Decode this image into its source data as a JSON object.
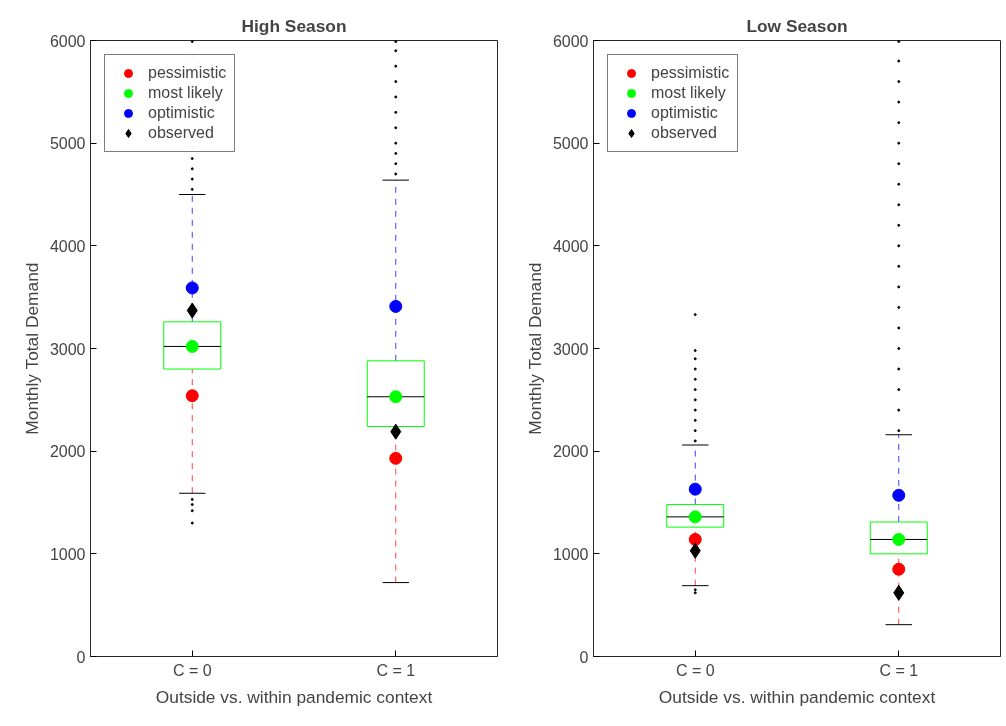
{
  "chart_data": [
    {
      "type": "box",
      "title": "High Season",
      "xlabel": "Outside vs. within pandemic context",
      "ylabel": "Monthly Total Demand",
      "categories": [
        "C = 0",
        "C = 1"
      ],
      "ylim": [
        0,
        6000
      ],
      "yticks": [
        0,
        1000,
        2000,
        3000,
        4000,
        5000,
        6000
      ],
      "grid": false,
      "legend": "top left",
      "series": [
        {
          "color": "#00ff00",
          "boxes": [
            {
              "low": 1590,
              "q1": 2800,
              "median": 3020,
              "q3": 3260,
              "high": 4500,
              "outliers": [
                4550,
                4650,
                4750,
                4850,
                4950,
                5100,
                5250,
                5400,
                5550,
                5700,
                5850,
                5990,
                1530,
                1480,
                1420,
                1300
              ]
            },
            {
              "low": 720,
              "q1": 2240,
              "median": 2530,
              "q3": 2880,
              "high": 4640,
              "outliers": [
                4700,
                4800,
                4900,
                5000,
                5150,
                5300,
                5450,
                5600,
                5750,
                5900,
                5990
              ]
            }
          ]
        },
        {
          "type": "scatter",
          "name": "pessimistic",
          "color": "#ff0000",
          "marker": "circle",
          "x": [
            "C = 0",
            "C = 1"
          ],
          "values": [
            2540,
            1930
          ]
        },
        {
          "type": "scatter",
          "name": "most likely",
          "color": "#00ff00",
          "marker": "circle",
          "x": [
            "C = 0",
            "C = 1"
          ],
          "values": [
            3020,
            2530
          ]
        },
        {
          "type": "scatter",
          "name": "optimistic",
          "color": "#0000ff",
          "marker": "circle",
          "x": [
            "C = 0",
            "C = 1"
          ],
          "values": [
            3590,
            3410
          ]
        },
        {
          "type": "scatter",
          "name": "observed",
          "color": "#000000",
          "marker": "diamond",
          "x": [
            "C = 0",
            "C = 1"
          ],
          "values": [
            3370,
            2190
          ]
        }
      ]
    },
    {
      "type": "box",
      "title": "Low Season",
      "xlabel": "Outside vs. within pandemic context",
      "ylabel": "Monthly Total Demand",
      "categories": [
        "C = 0",
        "C = 1"
      ],
      "ylim": [
        0,
        6000
      ],
      "yticks": [
        0,
        1000,
        2000,
        3000,
        4000,
        5000,
        6000
      ],
      "grid": false,
      "legend": "top left",
      "series": [
        {
          "color": "#00ff00",
          "boxes": [
            {
              "low": 690,
              "q1": 1260,
              "median": 1360,
              "q3": 1480,
              "high": 2060,
              "outliers": [
                2100,
                2200,
                2300,
                2400,
                2500,
                2600,
                2700,
                2800,
                2900,
                2980,
                3330,
                650,
                620
              ]
            },
            {
              "low": 310,
              "q1": 1000,
              "median": 1140,
              "q3": 1310,
              "high": 2160,
              "outliers": [
                2200,
                2400,
                2600,
                2800,
                3000,
                3200,
                3400,
                3600,
                3800,
                4000,
                4200,
                4400,
                4600,
                4800,
                5000,
                5200,
                5400,
                5600,
                5800,
                5990
              ]
            }
          ]
        },
        {
          "type": "scatter",
          "name": "pessimistic",
          "color": "#ff0000",
          "marker": "circle",
          "x": [
            "C = 0",
            "C = 1"
          ],
          "values": [
            1140,
            850
          ]
        },
        {
          "type": "scatter",
          "name": "most likely",
          "color": "#00ff00",
          "marker": "circle",
          "x": [
            "C = 0",
            "C = 1"
          ],
          "values": [
            1360,
            1140
          ]
        },
        {
          "type": "scatter",
          "name": "optimistic",
          "color": "#0000ff",
          "marker": "circle",
          "x": [
            "C = 0",
            "C = 1"
          ],
          "values": [
            1630,
            1570
          ]
        },
        {
          "type": "scatter",
          "name": "observed",
          "color": "#000000",
          "marker": "diamond",
          "x": [
            "C = 0",
            "C = 1"
          ],
          "values": [
            1030,
            620
          ]
        }
      ]
    }
  ]
}
